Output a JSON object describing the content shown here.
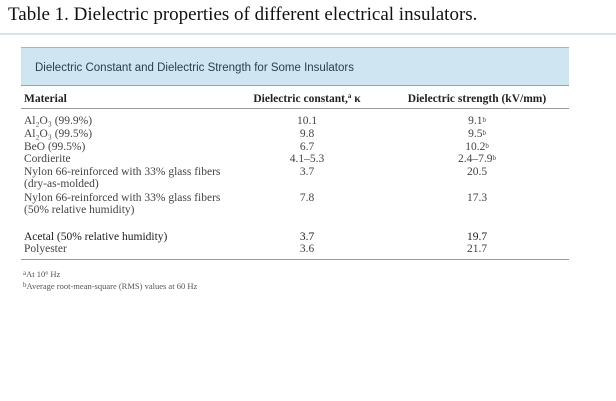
{
  "caption": "Table 1. Dielectric properties of different electrical insulators.",
  "table": {
    "title": "Dielectric Constant and Dielectric Strength for Some Insulators",
    "headers": {
      "material": "Material",
      "constant": "Dielectric constant,",
      "constant_sup": "a",
      "constant_symbol": " κ",
      "strength": "Dielectric strength (kV/mm)"
    },
    "rows": [
      {
        "material": "Al₂O₃ (99.9%)",
        "constant": "10.1",
        "strength": "9.1",
        "sup": "b"
      },
      {
        "material": "Al₂O₃ (99.5%)",
        "constant": "9.8",
        "strength": "9.5",
        "sup": "b"
      },
      {
        "material": "BeO (99.5%)",
        "constant": "6.7",
        "strength": "10.2",
        "sup": "b"
      },
      {
        "material": "Cordierite",
        "constant": "4.1–5.3",
        "strength": "2.4–7.9",
        "sup": "b"
      },
      {
        "material": "Nylon 66-reinforced with 33% glass fibers (dry-as-molded)",
        "constant": "3.7",
        "strength": "20.5",
        "sup": ""
      },
      {
        "material": "Nylon 66-reinforced with 33% glass fibers (50% relative humidity)",
        "constant": "7.8",
        "strength": "17.3",
        "sup": ""
      },
      {
        "material": "Acetal (50% relative humidity)",
        "constant": "3.7",
        "strength": "19.7",
        "sup": ""
      },
      {
        "material": "Polyester",
        "constant": "3.6",
        "strength": "21.7",
        "sup": ""
      }
    ],
    "footnotes": [
      {
        "mark": "a",
        "text": "At 10⁶ Hz"
      },
      {
        "mark": "b",
        "text": "Average root-mean-square (RMS) values at 60 Hz"
      }
    ]
  }
}
